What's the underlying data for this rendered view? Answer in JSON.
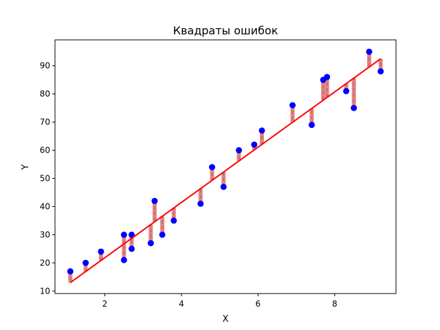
{
  "chart_data": {
    "type": "scatter",
    "title": "Квадраты ошибок",
    "xlabel": "X",
    "ylabel": "Y",
    "xlim": [
      0.7,
      9.6
    ],
    "ylim": [
      9.1,
      99.2
    ],
    "xticks": [
      2,
      4,
      6,
      8
    ],
    "yticks": [
      10,
      20,
      30,
      40,
      50,
      60,
      70,
      80,
      90
    ],
    "grid": false,
    "points": [
      {
        "x": 1.1,
        "y": 17
      },
      {
        "x": 1.5,
        "y": 20
      },
      {
        "x": 1.9,
        "y": 24
      },
      {
        "x": 2.5,
        "y": 30
      },
      {
        "x": 2.5,
        "y": 21
      },
      {
        "x": 2.7,
        "y": 30
      },
      {
        "x": 2.7,
        "y": 25
      },
      {
        "x": 3.2,
        "y": 27
      },
      {
        "x": 3.3,
        "y": 42
      },
      {
        "x": 3.5,
        "y": 30
      },
      {
        "x": 3.8,
        "y": 35
      },
      {
        "x": 4.5,
        "y": 41
      },
      {
        "x": 4.8,
        "y": 54
      },
      {
        "x": 5.1,
        "y": 47
      },
      {
        "x": 5.5,
        "y": 60
      },
      {
        "x": 5.9,
        "y": 62
      },
      {
        "x": 6.1,
        "y": 67
      },
      {
        "x": 6.9,
        "y": 76
      },
      {
        "x": 7.4,
        "y": 69
      },
      {
        "x": 7.7,
        "y": 85
      },
      {
        "x": 7.8,
        "y": 86
      },
      {
        "x": 8.3,
        "y": 81
      },
      {
        "x": 8.5,
        "y": 75
      },
      {
        "x": 8.9,
        "y": 95
      },
      {
        "x": 9.2,
        "y": 88
      }
    ],
    "regression": {
      "x": [
        1.1,
        9.2
      ],
      "y": [
        13.0,
        92.5
      ]
    },
    "colors": {
      "points": "#0000ff",
      "line": "#ff0000",
      "residual": "#f08080",
      "residual_dash": "#808080"
    }
  }
}
